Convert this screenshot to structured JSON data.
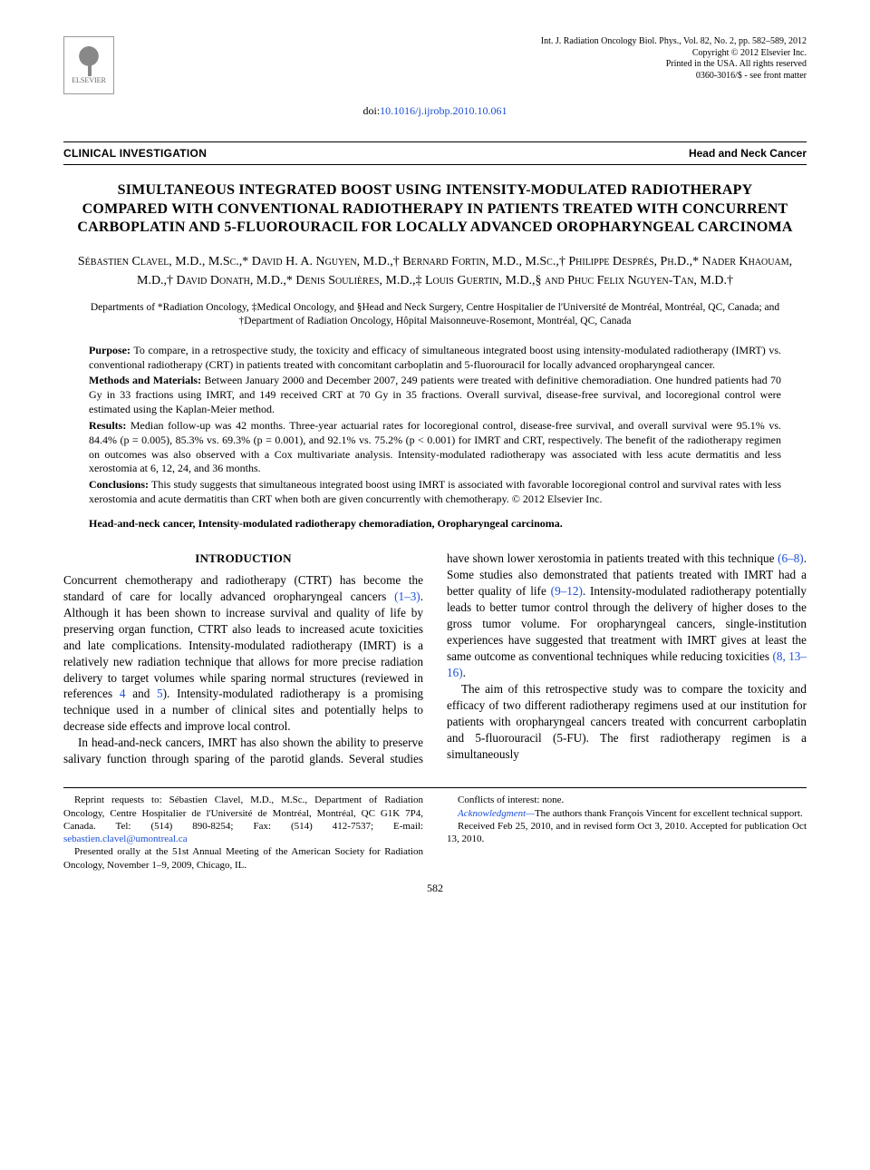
{
  "header": {
    "journal_line": "Int. J. Radiation Oncology Biol. Phys., Vol. 82, No. 2, pp. 582–589, 2012",
    "copyright": "Copyright © 2012 Elsevier Inc.",
    "printed": "Printed in the USA. All rights reserved",
    "issn": "0360-3016/$ - see front matter",
    "publisher": "ELSEVIER",
    "doi_label": "doi:",
    "doi": "10.1016/j.ijrobp.2010.10.061"
  },
  "section_bar": {
    "left": "CLINICAL INVESTIGATION",
    "right": "Head and Neck Cancer"
  },
  "title": "SIMULTANEOUS INTEGRATED BOOST USING INTENSITY-MODULATED RADIOTHERAPY COMPARED WITH CONVENTIONAL RADIOTHERAPY IN PATIENTS TREATED WITH CONCURRENT CARBOPLATIN AND 5-FLUOROURACIL FOR LOCALLY ADVANCED OROPHARYNGEAL CARCINOMA",
  "authors": "Sébastien Clavel, M.D., M.Sc.,* David H. A. Nguyen, M.D.,† Bernard Fortin, M.D., M.Sc.,† Philippe Després, Ph.D.,* Nader Khaouam, M.D.,† David Donath, M.D.,* Denis Soulières, M.D.,‡ Louis Guertin, M.D.,§ and Phuc Felix Nguyen-Tan, M.D.†",
  "affiliations": "Departments of *Radiation Oncology, ‡Medical Oncology, and §Head and Neck Surgery, Centre Hospitalier de l'Université de Montréal, Montréal, QC, Canada; and †Department of Radiation Oncology, Hôpital Maisonneuve-Rosemont, Montréal, QC, Canada",
  "abstract": {
    "purpose_label": "Purpose:",
    "purpose": " To compare, in a retrospective study, the toxicity and efficacy of simultaneous integrated boost using intensity-modulated radiotherapy (IMRT) vs. conventional radiotherapy (CRT) in patients treated with concomitant carboplatin and 5-fluorouracil for locally advanced oropharyngeal cancer.",
    "methods_label": "Methods and Materials:",
    "methods": " Between January 2000 and December 2007, 249 patients were treated with definitive chemoradiation. One hundred patients had 70 Gy in 33 fractions using IMRT, and 149 received CRT at 70 Gy in 35 fractions. Overall survival, disease-free survival, and locoregional control were estimated using the Kaplan-Meier method.",
    "results_label": "Results:",
    "results": " Median follow-up was 42 months. Three-year actuarial rates for locoregional control, disease-free survival, and overall survival were 95.1% vs. 84.4% (p = 0.005), 85.3% vs. 69.3% (p = 0.001), and 92.1% vs. 75.2% (p < 0.001) for IMRT and CRT, respectively. The benefit of the radiotherapy regimen on outcomes was also observed with a Cox multivariate analysis. Intensity-modulated radiotherapy was associated with less acute dermatitis and less xerostomia at 6, 12, 24, and 36 months.",
    "conclusions_label": "Conclusions:",
    "conclusions": " This study suggests that simultaneous integrated boost using IMRT is associated with favorable locoregional control and survival rates with less xerostomia and acute dermatitis than CRT when both are given concurrently with chemotherapy.   © 2012 Elsevier Inc."
  },
  "keywords": "Head-and-neck cancer, Intensity-modulated radiotherapy chemoradiation, Oropharyngeal carcinoma.",
  "intro_heading": "INTRODUCTION",
  "body": {
    "p1a": "Concurrent chemotherapy and radiotherapy (CTRT) has become the standard of care for locally advanced oropharyngeal cancers ",
    "p1_ref1": "(1–3)",
    "p1b": ". Although it has been shown to increase survival and quality of life by preserving organ function, CTRT also leads to increased acute toxicities and late complications. Intensity-modulated radiotherapy (IMRT) is a relatively new radiation technique that allows for more precise radiation delivery to target volumes while sparing normal structures (reviewed in references ",
    "p1_ref2": "4",
    "p1c": " and ",
    "p1_ref3": "5",
    "p1d": "). Intensity-modulated radiotherapy is a promising technique used in a number of clinical sites and potentially helps to decrease side effects and improve local control.",
    "p2a": "In head-and-neck cancers, IMRT has also shown the ability to preserve salivary function through sparing of the pa",
    "p2b": "rotid glands. Several studies have shown lower xerostomia in patients treated with this technique ",
    "p2_ref1": "(6–8)",
    "p2c": ". Some studies also demonstrated that patients treated with IMRT had a better quality of life ",
    "p2_ref2": "(9–12)",
    "p2d": ". Intensity-modulated radiotherapy potentially leads to better tumor control through the delivery of higher doses to the gross tumor volume. For oropharyngeal cancers, single-institution experiences have suggested that treatment with IMRT gives at least the same outcome as conventional techniques while reducing toxicities ",
    "p2_ref3": "(8, 13–16)",
    "p2e": ".",
    "p3": "The aim of this retrospective study was to compare the toxicity and efficacy of two different radiotherapy regimens used at our institution for patients with oropharyngeal cancers treated with concurrent carboplatin and 5-fluorouracil (5-FU). The first radiotherapy regimen is a simultaneously"
  },
  "footer": {
    "reprint": "Reprint requests to: Sébastien Clavel, M.D., M.Sc., Department of Radiation Oncology, Centre Hospitalier de l'Université de Montréal, Montréal, QC G1K 7P4, Canada. Tel: (514) 890-8254; Fax: (514) 412-7537; E-mail: ",
    "email": "sebastien.clavel@umontreal.ca",
    "presented": "Presented orally at the 51st Annual Meeting of the American Society for Radiation Oncology, November 1–9, 2009, Chicago, IL.",
    "conflicts": "Conflicts of interest: none.",
    "ack_label": "Acknowledgment—",
    "ack": "The authors thank François Vincent for excellent technical support.",
    "received": "Received Feb 25, 2010, and in revised form Oct 3, 2010. Accepted for publication Oct 13, 2010."
  },
  "pagenum": "582"
}
